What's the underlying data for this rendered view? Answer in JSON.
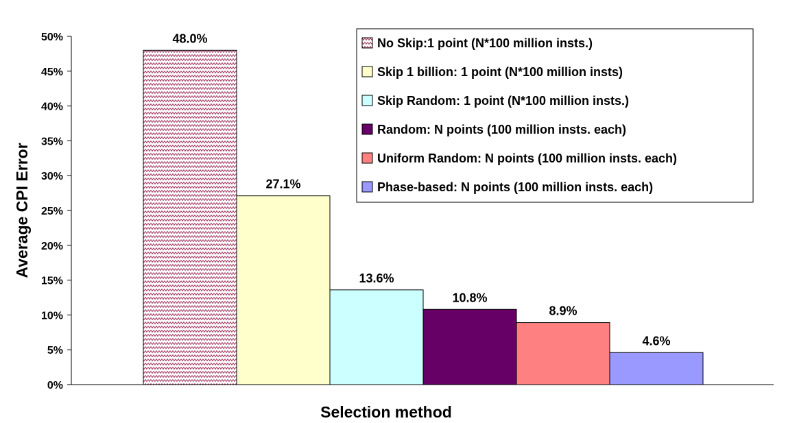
{
  "chart_data": {
    "type": "bar",
    "title": "",
    "xlabel": "Selection method",
    "ylabel": "Average CPI Error",
    "ylim": [
      0,
      50
    ],
    "yticks": [
      "0%",
      "5%",
      "10%",
      "15%",
      "20%",
      "25%",
      "30%",
      "35%",
      "40%",
      "45%",
      "50%"
    ],
    "legend_position": "top-right",
    "grid": false,
    "series": [
      {
        "name": "No Skip:1 point (N*100 million insts.)",
        "value": 48.0,
        "label": "48.0%",
        "color": "#ffffff",
        "pattern": "zigzag-maroon"
      },
      {
        "name": "Skip 1 billion: 1 point (N*100 million insts)",
        "value": 27.1,
        "label": "27.1%",
        "color": "#ffffcc"
      },
      {
        "name": "Skip Random: 1 point (N*100 million insts.)",
        "value": 13.6,
        "label": "13.6%",
        "color": "#ccffff"
      },
      {
        "name": "Random: N points (100 million insts. each)",
        "value": 10.8,
        "label": "10.8%",
        "color": "#660066"
      },
      {
        "name": "Uniform Random: N points (100 million insts. each)",
        "value": 8.9,
        "label": "8.9%",
        "color": "#ff8080"
      },
      {
        "name": "Phase-based: N points (100 million insts. each)",
        "value": 4.6,
        "label": "4.6%",
        "color": "#9999ff"
      }
    ]
  }
}
